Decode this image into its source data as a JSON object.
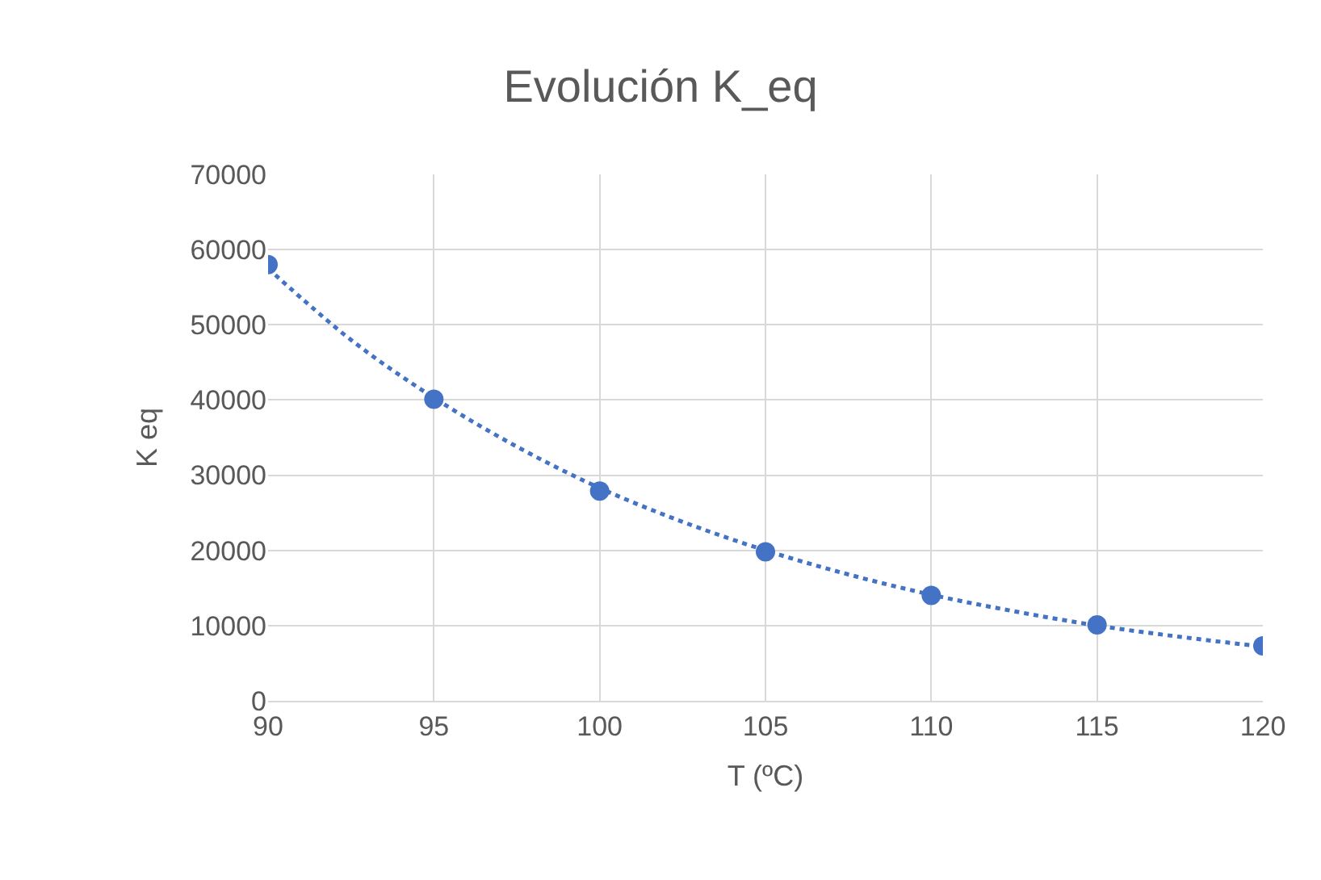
{
  "chart_data": {
    "type": "scatter",
    "title": "Evolución K_eq",
    "xlabel": "T (ºC)",
    "ylabel": "K eq",
    "x": [
      90,
      95,
      100,
      105,
      110,
      115,
      120
    ],
    "series": [
      {
        "color": "#4472c4",
        "values": [
          58000,
          40100,
          27900,
          19800,
          14000,
          10100,
          7300
        ],
        "marker": "circle"
      },
      {
        "type": "line",
        "line_style": "dotted",
        "marker": "none",
        "color": "#4472c4",
        "x": [
          90,
          92.5,
          95,
          97.5,
          100,
          102.5,
          105,
          107.5,
          110,
          112.5,
          115,
          117.5,
          120
        ],
        "values": [
          57500,
          48000,
          40300,
          33800,
          28300,
          23800,
          20000,
          16800,
          14100,
          11900,
          10000,
          8500,
          7200
        ]
      }
    ],
    "xlim": [
      90,
      120
    ],
    "xticks": [
      90,
      95,
      100,
      105,
      110,
      115,
      120
    ],
    "ylim": [
      0,
      70000
    ],
    "yticks": [
      0,
      10000,
      20000,
      30000,
      40000,
      50000,
      60000,
      70000
    ],
    "grid": true
  }
}
